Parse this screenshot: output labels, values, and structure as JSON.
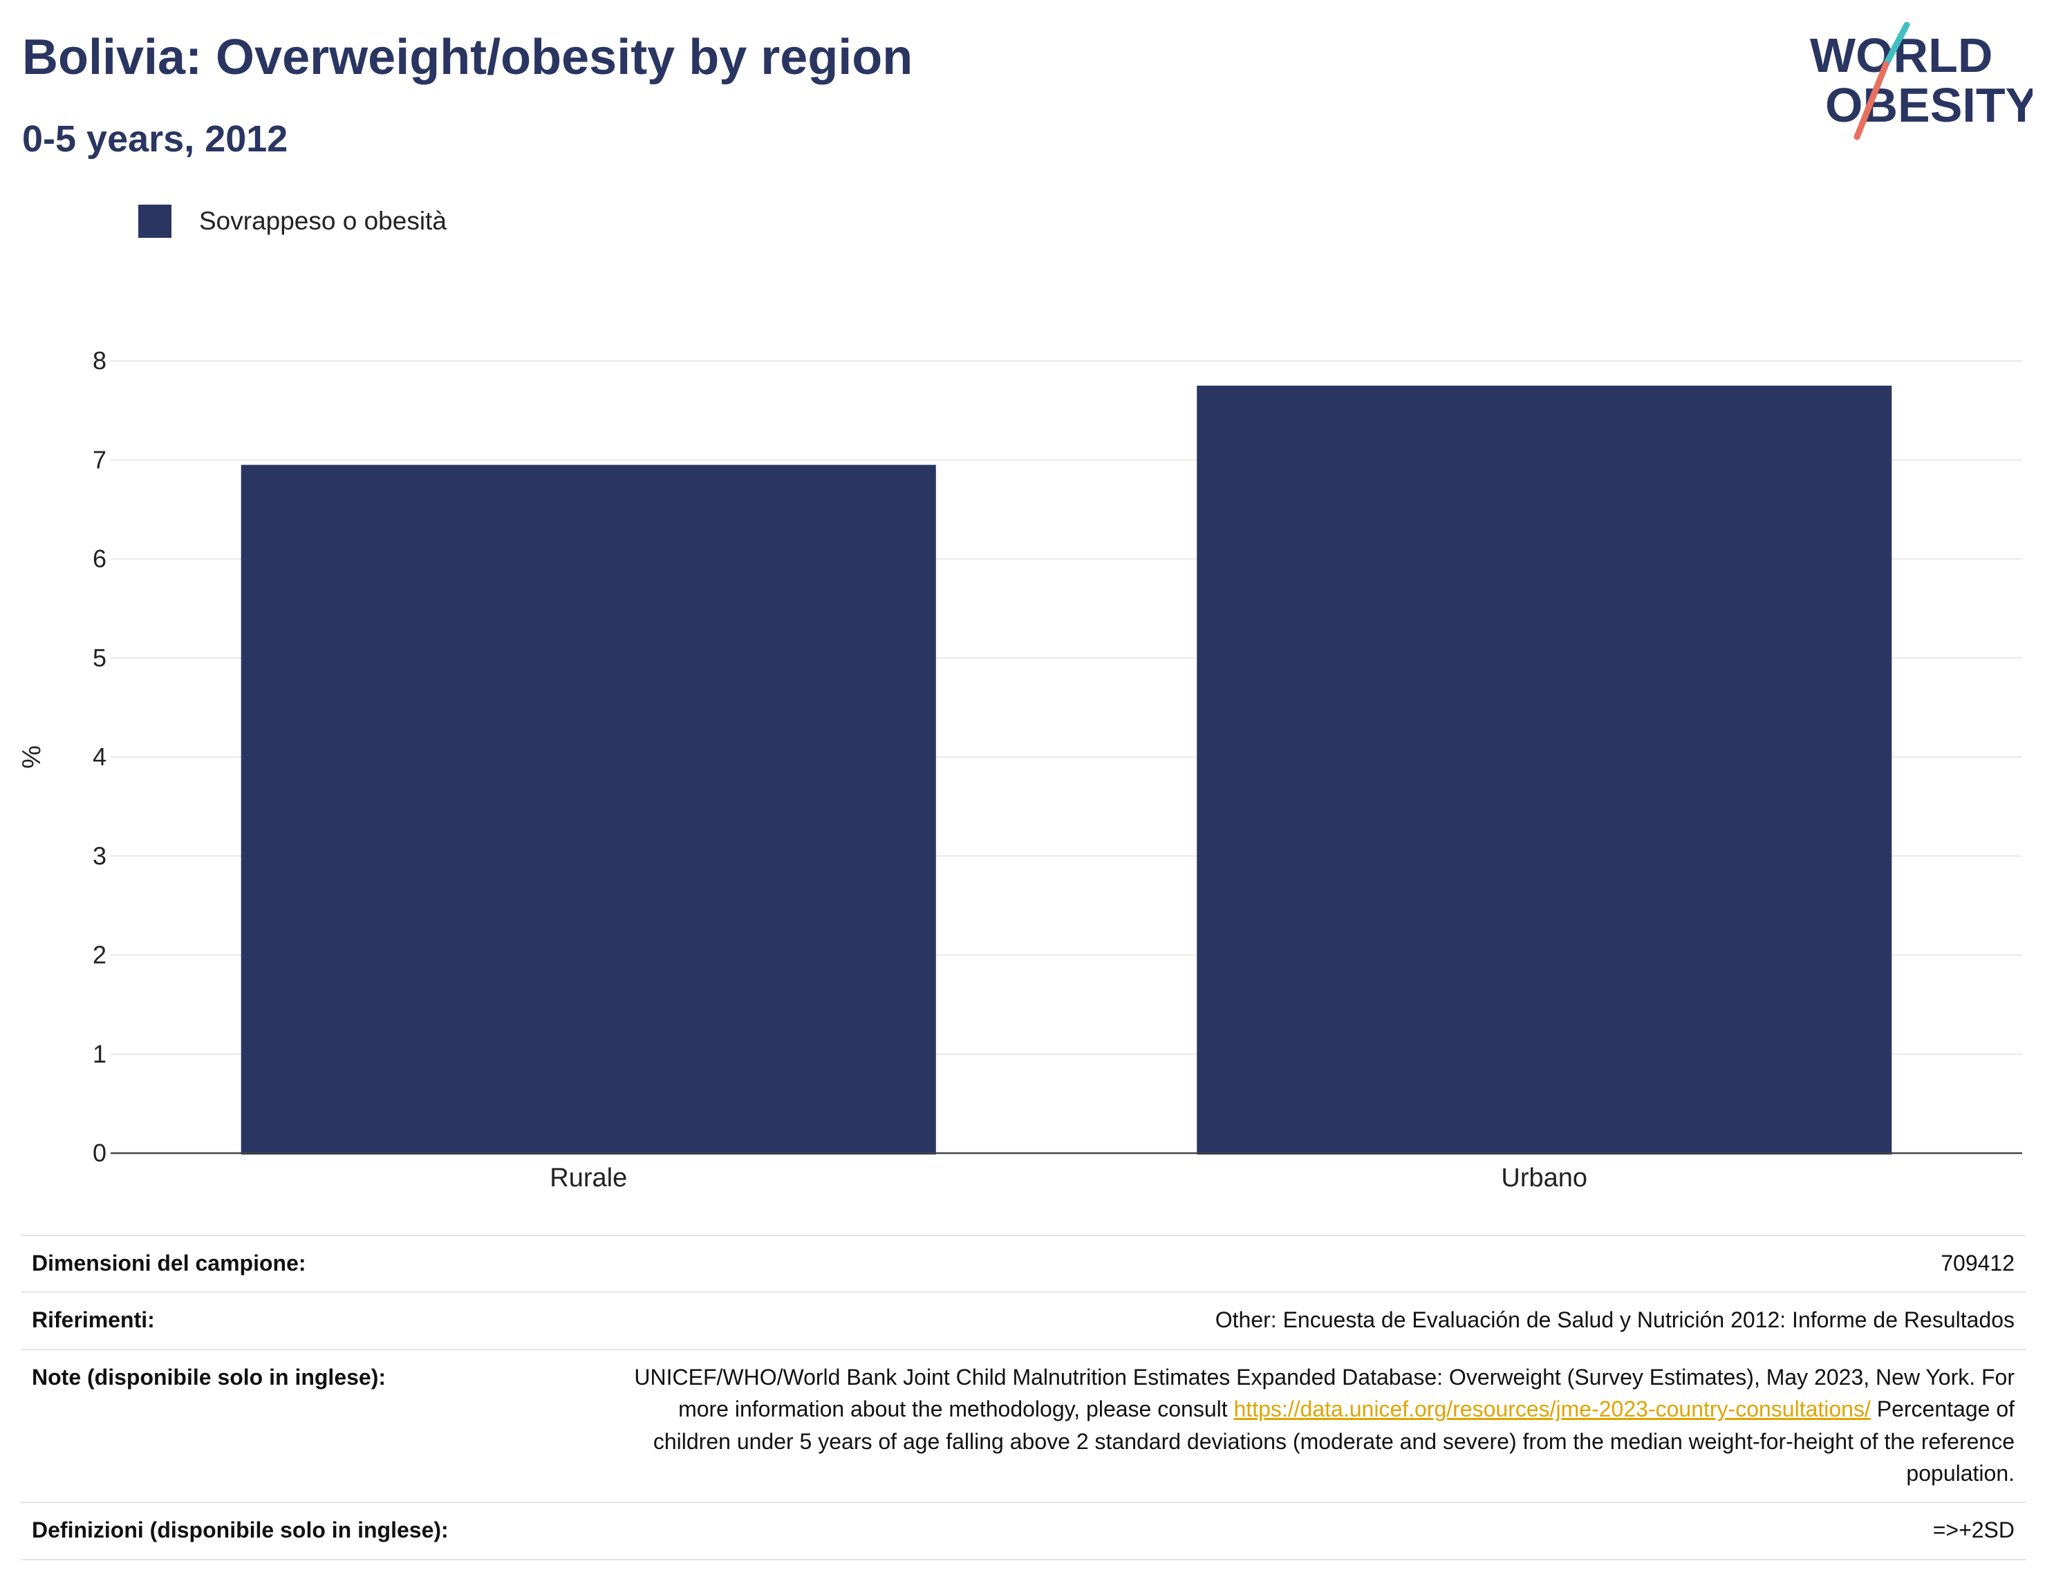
{
  "header": {
    "title": "Bolivia: Overweight/obesity by region",
    "subtitle": "0-5 years, 2012"
  },
  "logo": {
    "line1": "WORLD",
    "line2": "OBESITY"
  },
  "colors": {
    "bar": "#2a3661",
    "text": "#2a3661",
    "accent_teal": "#3fbfc0",
    "accent_coral": "#e8705f",
    "link": "#e0a400"
  },
  "chart_data": {
    "type": "bar",
    "categories": [
      "Rurale",
      "Urbano"
    ],
    "series": [
      {
        "name": "Sovrappeso o obesità",
        "values": [
          6.95,
          7.75
        ]
      }
    ],
    "ylabel": "%",
    "xlabel": "",
    "ylim": [
      0,
      8
    ],
    "yticks": [
      0,
      1,
      2,
      3,
      4,
      5,
      6,
      7,
      8
    ],
    "grid": true,
    "legend_position": "top-left"
  },
  "meta": {
    "rows": [
      {
        "label": "Dimensioni del campione:",
        "value": "709412"
      },
      {
        "label": "Riferimenti:",
        "value": "Other: Encuesta de Evaluación de Salud y Nutrición 2012: Informe de Resultados"
      },
      {
        "label": "Note (disponibile solo in inglese):",
        "value_pre": "UNICEF/WHO/World Bank Joint Child Malnutrition Estimates Expanded Database: Overweight (Survey Estimates), May 2023, New York. For more information about the methodology, please consult ",
        "link": "https://data.unicef.org/resources/jme-2023-country-consultations/",
        "value_post": " Percentage of children under 5 years of age falling above 2 standard deviations (moderate and severe) from the median weight-for-height of the reference population."
      },
      {
        "label": "Definizioni (disponibile solo in inglese):",
        "value": "=>+2SD"
      }
    ]
  }
}
